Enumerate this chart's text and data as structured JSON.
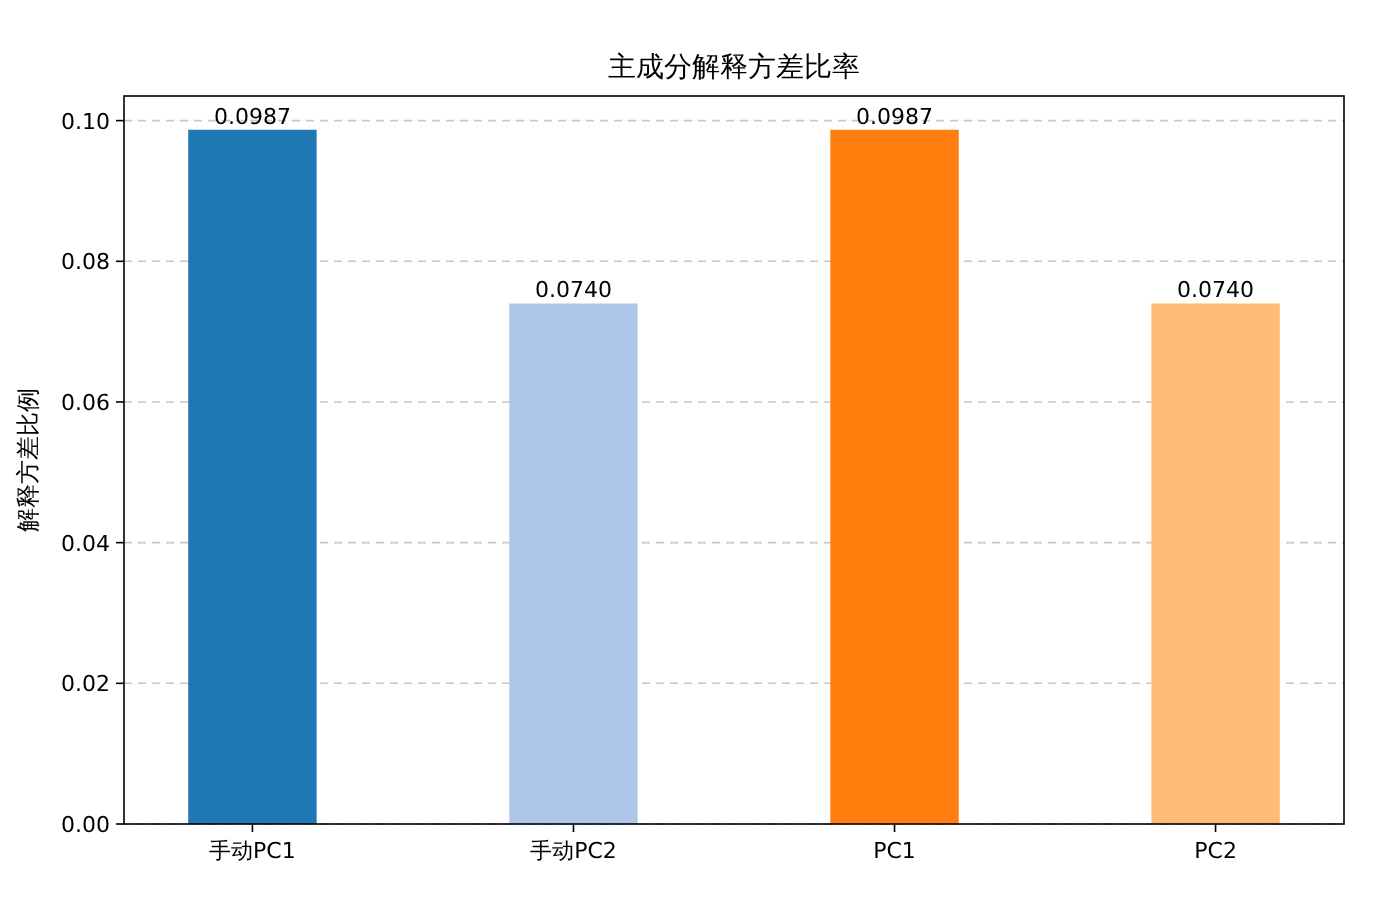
{
  "chart_data": {
    "type": "bar",
    "title": "主成分解释方差比率",
    "ylabel": "解释方差比例",
    "categories": [
      "手动PC1",
      "手动PC2",
      "PC1",
      "PC2"
    ],
    "values": [
      0.0987,
      0.074,
      0.0987,
      0.074
    ],
    "colors": [
      "#1f77b4",
      "#aec7e8",
      "#ff7f0e",
      "#ffbb78"
    ],
    "value_labels": [
      "0.0987",
      "0.0740",
      "0.0987",
      "0.0740"
    ],
    "ylim": [
      0,
      0.1035
    ],
    "yticks": [
      {
        "value": 0,
        "label": "0.00"
      },
      {
        "value": 0.02,
        "label": "0.02"
      },
      {
        "value": 0.04,
        "label": "0.04"
      },
      {
        "value": 0.06,
        "label": "0.06"
      },
      {
        "value": 0.08,
        "label": "0.08"
      },
      {
        "value": 0.1,
        "label": "0.10"
      }
    ],
    "grid": "y"
  }
}
